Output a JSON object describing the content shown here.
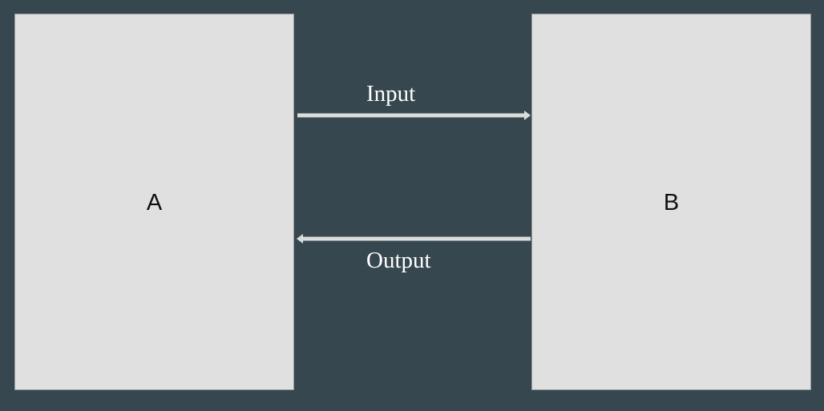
{
  "nodes": {
    "a": {
      "label": "A"
    },
    "b": {
      "label": "B"
    }
  },
  "edges": {
    "input": {
      "label": "Input",
      "from": "A",
      "to": "B"
    },
    "output": {
      "label": "Output",
      "from": "B",
      "to": "A"
    }
  },
  "colors": {
    "background": "#36474f",
    "box_fill": "#e0e0e0",
    "box_border": "#9a9a9a",
    "arrow": "#dcdcdc",
    "label_text": "#ffffff"
  }
}
